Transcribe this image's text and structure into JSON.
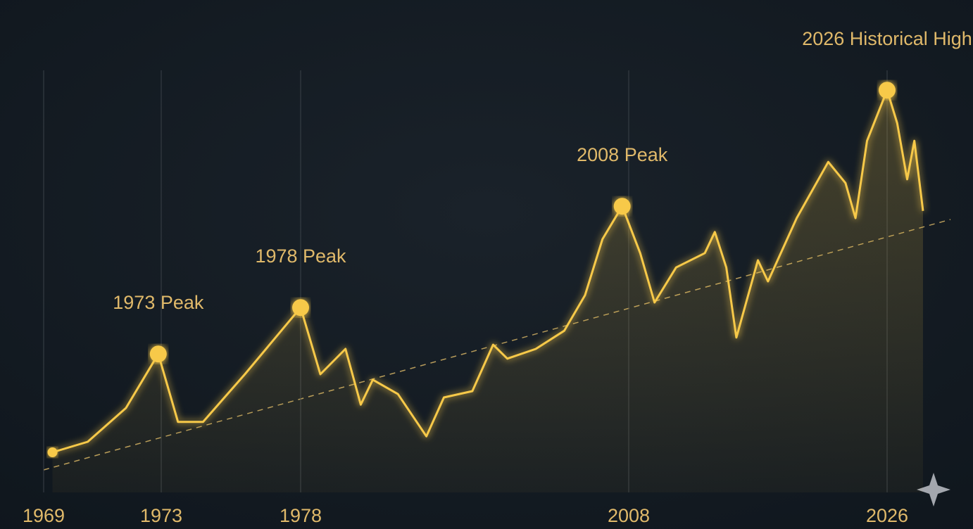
{
  "chart_data": {
    "type": "line",
    "x": [
      1969.3,
      1970.5,
      1971.8,
      1972.9,
      1973.6,
      1974.5,
      1976,
      1978,
      1979.8,
      1982.1,
      1983.5,
      1984.6,
      1986.9,
      1989.5,
      1991.1,
      1993.7,
      1995.6,
      1996.9,
      1999.5,
      2002.1,
      2004,
      2005.6,
      2007.4,
      2008.8,
      2009.8,
      2011.3,
      2013.3,
      2014,
      2014.8,
      2015.5,
      2017,
      2017.7,
      2019.7,
      2021.9,
      2023.1,
      2023.8,
      2024.6,
      2026,
      2026.7,
      2027.4,
      2027.9,
      2028.5
    ],
    "series": [
      {
        "color": "#f7c948",
        "values": [
          9.5,
          12,
          20,
          32.8,
          16.7,
          16.7,
          28,
          43.8,
          28,
          34,
          20.8,
          26.7,
          23.3,
          13.3,
          22.5,
          24,
          35,
          31.7,
          34,
          38.3,
          46.7,
          60,
          67.8,
          56.7,
          45,
          53.3,
          56.7,
          61.7,
          53.3,
          36.7,
          55,
          50,
          65,
          78.3,
          73.3,
          65,
          83.3,
          95.3,
          87.5,
          74.2,
          83.3,
          66.7
        ]
      }
    ],
    "xticks": [
      1969,
      1973,
      1978,
      2008,
      2026
    ],
    "ylim": [
      0,
      100
    ],
    "grid": true,
    "annotations": [
      {
        "text": "1973 Peak",
        "x": 1972.9,
        "y": 32.8
      },
      {
        "text": "1978 Peak",
        "x": 1978,
        "y": 43.8
      },
      {
        "text": "2008 Peak",
        "x": 2007.4,
        "y": 67.8
      },
      {
        "text": "2026 Historical High",
        "x": 2026,
        "y": 95.3
      }
    ]
  }
}
